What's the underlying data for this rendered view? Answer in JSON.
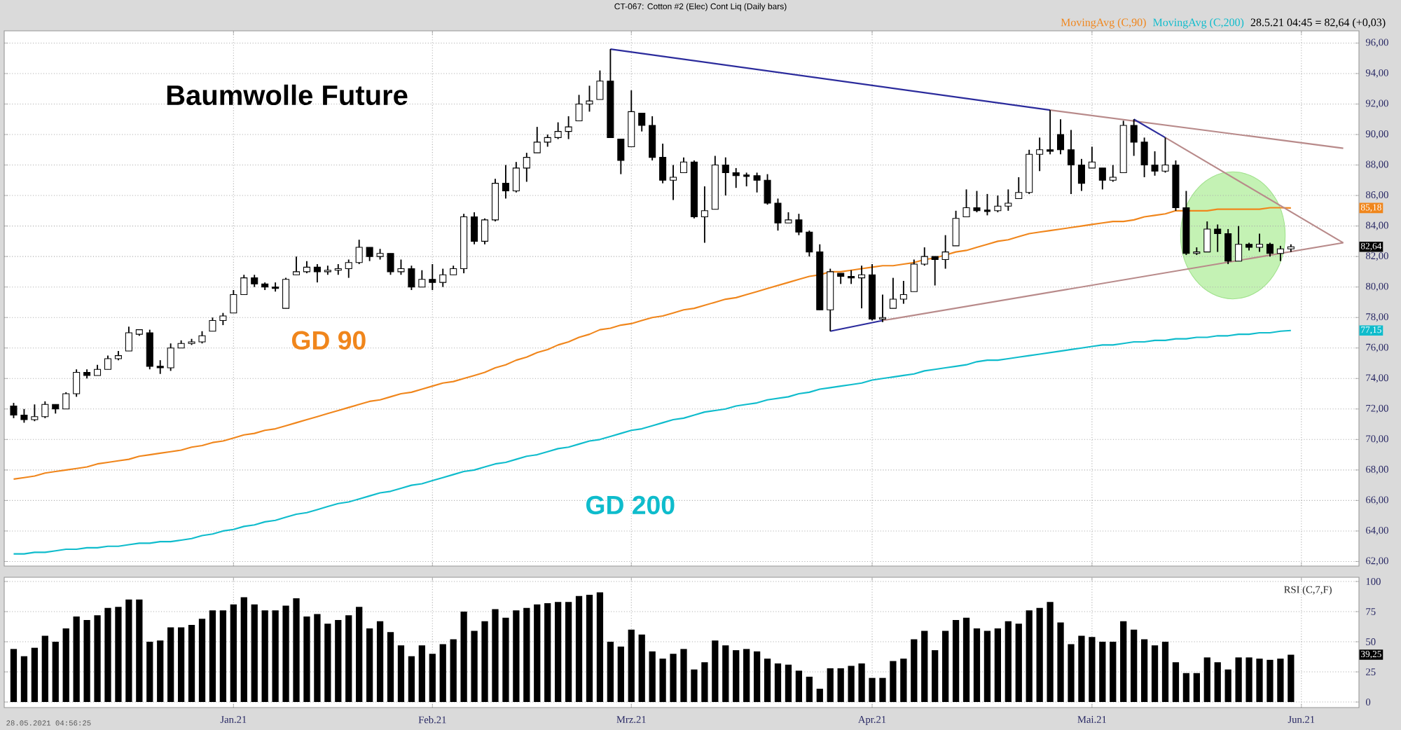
{
  "chart_data": [
    {
      "type": "candlestick",
      "title": "Baumwolle Future",
      "subtitle": "CT-067: Cotton #2 (Elec) Cont Liq (Daily bars)",
      "color": "#000000",
      "categories": [
        null,
        null,
        null,
        null,
        null,
        null,
        null,
        null,
        null,
        null,
        null,
        null,
        null,
        null,
        null,
        null,
        null,
        null,
        null,
        null,
        null,
        null,
        null,
        null,
        null,
        null,
        null,
        null,
        null,
        null,
        null,
        null,
        null,
        null,
        null,
        null,
        null,
        null,
        null,
        null,
        null,
        null,
        null,
        null,
        null,
        null,
        null,
        null,
        null,
        null,
        null,
        null,
        null,
        null,
        null,
        null,
        null,
        null,
        null,
        null,
        null,
        null,
        null,
        null,
        null,
        null,
        null,
        null,
        null,
        null,
        null,
        null,
        null,
        null,
        null,
        null,
        null,
        null,
        null,
        null,
        null,
        null,
        null,
        null,
        null,
        null,
        null,
        null,
        null,
        null,
        null,
        null,
        null,
        null,
        null,
        null,
        null,
        null,
        null,
        null,
        null,
        null,
        null,
        null,
        null,
        null,
        null,
        null,
        null,
        null,
        null,
        null,
        null,
        null,
        null,
        null,
        null,
        null,
        null,
        null,
        null,
        null,
        null,
        null,
        null,
        null,
        null,
        null
      ],
      "ohlc": [
        [
          72.2,
          72.4,
          71.4,
          71.6
        ],
        [
          71.6,
          72.0,
          71.1,
          71.3
        ],
        [
          71.3,
          72.3,
          71.2,
          71.5
        ],
        [
          71.5,
          72.5,
          71.4,
          72.3
        ],
        [
          72.3,
          72.3,
          71.7,
          72.0
        ],
        [
          72.0,
          73.1,
          72.0,
          73.0
        ],
        [
          73.0,
          74.6,
          72.8,
          74.4
        ],
        [
          74.4,
          74.6,
          74.0,
          74.2
        ],
        [
          74.2,
          74.9,
          74.2,
          74.6
        ],
        [
          74.6,
          75.5,
          74.6,
          75.3
        ],
        [
          75.3,
          75.8,
          75.2,
          75.5
        ],
        [
          75.8,
          77.4,
          75.8,
          77.0
        ],
        [
          76.9,
          77.2,
          76.8,
          77.2
        ],
        [
          77.0,
          77.2,
          74.6,
          74.8
        ],
        [
          74.8,
          75.2,
          74.3,
          74.7
        ],
        [
          74.7,
          76.3,
          74.5,
          76.0
        ],
        [
          76.0,
          76.5,
          76.0,
          76.3
        ],
        [
          76.3,
          76.6,
          76.2,
          76.4
        ],
        [
          76.4,
          77.1,
          76.3,
          76.8
        ],
        [
          77.1,
          78.0,
          77.1,
          77.8
        ],
        [
          77.8,
          78.3,
          77.5,
          78.1
        ],
        [
          78.3,
          79.8,
          78.3,
          79.5
        ],
        [
          79.5,
          80.8,
          79.5,
          80.6
        ],
        [
          80.6,
          80.8,
          80.0,
          80.2
        ],
        [
          80.2,
          80.3,
          79.8,
          80.0
        ],
        [
          80.0,
          80.3,
          79.7,
          79.9
        ],
        [
          78.6,
          80.6,
          78.6,
          80.5
        ],
        [
          80.8,
          82.0,
          80.8,
          81.0
        ],
        [
          81.0,
          81.7,
          80.9,
          81.3
        ],
        [
          81.3,
          81.5,
          80.3,
          81.0
        ],
        [
          81.0,
          81.4,
          80.8,
          81.1
        ],
        [
          81.1,
          81.5,
          80.8,
          81.2
        ],
        [
          81.2,
          81.8,
          80.6,
          81.6
        ],
        [
          81.6,
          83.1,
          81.5,
          82.6
        ],
        [
          82.6,
          82.6,
          81.7,
          82.0
        ],
        [
          82.0,
          82.5,
          81.8,
          82.2
        ],
        [
          82.2,
          82.2,
          80.8,
          81.0
        ],
        [
          81.0,
          81.8,
          80.8,
          81.2
        ],
        [
          81.2,
          81.4,
          79.8,
          80.0
        ],
        [
          80.0,
          81.1,
          80.0,
          80.5
        ],
        [
          80.5,
          81.5,
          79.8,
          80.3
        ],
        [
          80.3,
          81.2,
          80.0,
          80.8
        ],
        [
          80.8,
          81.4,
          80.8,
          81.2
        ],
        [
          81.2,
          84.8,
          80.9,
          84.6
        ],
        [
          84.6,
          84.9,
          82.8,
          83.0
        ],
        [
          83.0,
          84.5,
          82.8,
          84.4
        ],
        [
          84.4,
          87.1,
          84.3,
          86.8
        ],
        [
          86.8,
          88.0,
          85.8,
          86.3
        ],
        [
          86.3,
          88.2,
          86.2,
          87.8
        ],
        [
          87.8,
          88.8,
          86.9,
          88.5
        ],
        [
          88.8,
          90.5,
          88.8,
          89.5
        ],
        [
          89.5,
          90.0,
          89.2,
          89.8
        ],
        [
          89.8,
          90.8,
          89.7,
          90.2
        ],
        [
          90.2,
          91.2,
          89.7,
          90.5
        ],
        [
          90.9,
          92.6,
          90.9,
          92.0
        ],
        [
          92.0,
          93.2,
          91.5,
          92.2
        ],
        [
          92.3,
          94.2,
          92.3,
          93.5
        ],
        [
          93.5,
          95.6,
          89.8,
          89.8
        ],
        [
          89.7,
          89.7,
          87.4,
          88.3
        ],
        [
          89.2,
          92.9,
          89.2,
          91.5
        ],
        [
          91.4,
          91.4,
          90.2,
          90.6
        ],
        [
          90.6,
          91.2,
          88.3,
          88.5
        ],
        [
          88.5,
          89.4,
          86.8,
          87.0
        ],
        [
          87.0,
          88.0,
          85.7,
          87.2
        ],
        [
          87.5,
          88.5,
          87.5,
          88.2
        ],
        [
          88.2,
          88.3,
          84.5,
          84.6
        ],
        [
          84.6,
          86.6,
          82.9,
          85.0
        ],
        [
          85.1,
          88.6,
          85.1,
          88.0
        ],
        [
          88.0,
          88.5,
          86.0,
          87.5
        ],
        [
          87.5,
          87.8,
          86.5,
          87.3
        ],
        [
          87.3,
          87.5,
          86.6,
          87.3
        ],
        [
          87.3,
          87.5,
          86.2,
          87.0
        ],
        [
          87.0,
          87.4,
          85.4,
          85.5
        ],
        [
          85.5,
          85.8,
          83.7,
          84.2
        ],
        [
          84.2,
          84.9,
          84.2,
          84.4
        ],
        [
          84.4,
          84.8,
          83.4,
          83.6
        ],
        [
          83.6,
          83.7,
          82.0,
          82.3
        ],
        [
          82.3,
          82.8,
          78.5,
          78.5
        ],
        [
          78.5,
          81.2,
          77.1,
          81.0
        ],
        [
          80.9,
          80.9,
          80.2,
          80.7
        ],
        [
          80.7,
          81.1,
          80.2,
          80.6
        ],
        [
          80.6,
          81.4,
          78.6,
          80.8
        ],
        [
          80.8,
          81.5,
          77.8,
          77.9
        ],
        [
          77.9,
          79.5,
          77.7,
          78.0
        ],
        [
          78.6,
          80.6,
          78.6,
          79.2
        ],
        [
          79.2,
          80.4,
          78.9,
          79.5
        ],
        [
          79.7,
          81.8,
          79.7,
          81.5
        ],
        [
          81.5,
          82.6,
          81.4,
          82.0
        ],
        [
          82.0,
          82.0,
          80.1,
          81.8
        ],
        [
          81.8,
          83.4,
          81.2,
          82.3
        ],
        [
          82.7,
          85.0,
          82.7,
          84.5
        ],
        [
          84.6,
          86.4,
          84.6,
          85.2
        ],
        [
          85.2,
          86.3,
          84.9,
          85.0
        ],
        [
          85.0,
          86.1,
          84.7,
          85.0
        ],
        [
          85.0,
          86.0,
          84.9,
          85.3
        ],
        [
          85.3,
          86.4,
          85.0,
          85.5
        ],
        [
          85.8,
          87.2,
          85.8,
          86.2
        ],
        [
          86.2,
          89.0,
          86.1,
          88.7
        ],
        [
          88.7,
          89.8,
          87.6,
          89.0
        ],
        [
          89.0,
          91.6,
          88.7,
          88.9
        ],
        [
          90.0,
          91.0,
          88.7,
          89.0
        ],
        [
          89.0,
          90.3,
          86.1,
          88.0
        ],
        [
          88.0,
          88.4,
          86.3,
          86.8
        ],
        [
          87.8,
          89.2,
          87.8,
          88.2
        ],
        [
          87.8,
          87.8,
          86.4,
          87.0
        ],
        [
          87.0,
          88.0,
          86.9,
          87.2
        ],
        [
          87.5,
          90.9,
          87.5,
          90.6
        ],
        [
          90.6,
          91.0,
          88.6,
          89.5
        ],
        [
          89.5,
          89.8,
          87.2,
          88.0
        ],
        [
          88.0,
          88.9,
          87.3,
          87.6
        ],
        [
          87.6,
          89.8,
          87.5,
          88.0
        ],
        [
          88.0,
          88.3,
          85.0,
          85.2
        ],
        [
          85.2,
          86.3,
          82.1,
          82.2
        ],
        [
          82.2,
          82.6,
          82.1,
          82.3
        ],
        [
          82.3,
          84.3,
          82.3,
          83.8
        ],
        [
          83.8,
          84.1,
          82.3,
          83.5
        ],
        [
          83.5,
          83.8,
          81.5,
          81.7
        ],
        [
          81.7,
          84.0,
          81.7,
          82.8
        ],
        [
          82.8,
          82.9,
          82.4,
          82.6
        ],
        [
          82.6,
          83.5,
          82.3,
          82.8
        ],
        [
          82.8,
          82.9,
          82.0,
          82.2
        ],
        [
          82.2,
          82.7,
          81.7,
          82.5
        ],
        [
          82.5,
          82.8,
          82.3,
          82.64
        ],
        null,
        null,
        null,
        null,
        null
      ],
      "series": [
        {
          "name": "MovingAvg (C,90)",
          "type": "line",
          "color": "#f0861c",
          "values": [
            67.4,
            67.5,
            67.6,
            67.8,
            67.9,
            68.0,
            68.1,
            68.2,
            68.4,
            68.5,
            68.6,
            68.7,
            68.9,
            69.0,
            69.1,
            69.2,
            69.3,
            69.5,
            69.6,
            69.8,
            69.9,
            70.1,
            70.3,
            70.4,
            70.6,
            70.7,
            70.9,
            71.1,
            71.3,
            71.5,
            71.7,
            71.9,
            72.1,
            72.3,
            72.5,
            72.6,
            72.8,
            73.0,
            73.1,
            73.3,
            73.5,
            73.7,
            73.8,
            74.0,
            74.2,
            74.4,
            74.7,
            74.9,
            75.2,
            75.4,
            75.7,
            75.9,
            76.2,
            76.4,
            76.7,
            76.9,
            77.2,
            77.3,
            77.5,
            77.6,
            77.8,
            78.0,
            78.1,
            78.3,
            78.5,
            78.6,
            78.8,
            79.0,
            79.2,
            79.3,
            79.5,
            79.7,
            79.9,
            80.1,
            80.3,
            80.5,
            80.7,
            80.8,
            81.0,
            81.0,
            81.1,
            81.2,
            81.3,
            81.4,
            81.4,
            81.5,
            81.6,
            81.8,
            81.9,
            82.1,
            82.3,
            82.4,
            82.6,
            82.8,
            83.0,
            83.1,
            83.3,
            83.5,
            83.6,
            83.7,
            83.8,
            83.9,
            84.0,
            84.1,
            84.2,
            84.3,
            84.3,
            84.4,
            84.6,
            84.7,
            84.8,
            85.0,
            85.0,
            85.0,
            85.0,
            85.1,
            85.1,
            85.1,
            85.1,
            85.1,
            85.2,
            85.2,
            85.18,
            null,
            null,
            null,
            null,
            null
          ]
        },
        {
          "name": "MovingAvg (C,200)",
          "type": "line",
          "color": "#0fbccc",
          "values": [
            62.5,
            62.5,
            62.6,
            62.6,
            62.7,
            62.8,
            62.8,
            62.9,
            62.9,
            63.0,
            63.0,
            63.1,
            63.2,
            63.2,
            63.3,
            63.3,
            63.4,
            63.5,
            63.7,
            63.8,
            64.0,
            64.1,
            64.3,
            64.4,
            64.6,
            64.7,
            64.9,
            65.1,
            65.2,
            65.4,
            65.6,
            65.8,
            65.9,
            66.1,
            66.3,
            66.5,
            66.6,
            66.8,
            67.0,
            67.1,
            67.3,
            67.5,
            67.7,
            67.9,
            68.0,
            68.2,
            68.4,
            68.5,
            68.7,
            68.9,
            69.0,
            69.2,
            69.4,
            69.5,
            69.7,
            69.9,
            70.0,
            70.2,
            70.4,
            70.6,
            70.7,
            70.9,
            71.1,
            71.3,
            71.4,
            71.6,
            71.8,
            71.9,
            72.0,
            72.2,
            72.3,
            72.4,
            72.6,
            72.7,
            72.8,
            73.0,
            73.1,
            73.3,
            73.4,
            73.5,
            73.6,
            73.7,
            73.9,
            74.0,
            74.1,
            74.2,
            74.3,
            74.5,
            74.6,
            74.7,
            74.8,
            74.9,
            75.1,
            75.2,
            75.2,
            75.3,
            75.4,
            75.5,
            75.6,
            75.7,
            75.8,
            75.9,
            76.0,
            76.1,
            76.2,
            76.2,
            76.3,
            76.4,
            76.4,
            76.5,
            76.5,
            76.6,
            76.6,
            76.7,
            76.7,
            76.8,
            76.8,
            76.9,
            76.9,
            77.0,
            77.0,
            77.1,
            77.15,
            null,
            null,
            null,
            null,
            null
          ]
        },
        {
          "type": "line",
          "color": "#2b2b9c",
          "values": [
            null,
            null,
            null,
            null,
            null,
            null,
            null,
            null,
            null,
            null,
            null,
            null,
            null,
            null,
            null,
            null,
            null,
            null,
            null,
            null,
            null,
            null,
            null,
            null,
            null,
            null,
            null,
            null,
            null,
            null,
            null,
            null,
            null,
            null,
            null,
            null,
            null,
            null,
            null,
            null,
            null,
            null,
            null,
            null,
            null,
            null,
            null,
            null,
            null,
            null,
            null,
            null,
            null,
            null,
            null,
            null,
            null,
            95.6,
            null,
            null,
            null,
            null,
            null,
            null,
            null,
            null,
            null,
            null,
            null,
            null,
            null,
            null,
            null,
            null,
            null,
            null,
            null,
            null,
            null,
            null,
            null,
            null,
            null,
            null,
            null,
            null,
            null,
            null,
            null,
            null,
            null,
            null,
            null,
            null,
            null,
            null,
            null,
            null,
            null,
            91.6,
            null,
            null,
            null,
            null,
            null,
            null,
            null,
            null,
            null,
            null,
            null,
            null,
            null,
            null,
            null,
            null,
            null,
            null,
            null,
            null,
            null,
            null,
            null,
            null,
            null,
            null,
            null,
            null
          ]
        },
        {
          "type": "line",
          "color": "#b88a8a",
          "values": [
            null,
            null,
            null,
            null,
            null,
            null,
            null,
            null,
            null,
            null,
            null,
            null,
            null,
            null,
            null,
            null,
            null,
            null,
            null,
            null,
            null,
            null,
            null,
            null,
            null,
            null,
            null,
            null,
            null,
            null,
            null,
            null,
            null,
            null,
            null,
            null,
            null,
            null,
            null,
            null,
            null,
            null,
            null,
            null,
            null,
            null,
            null,
            null,
            null,
            null,
            null,
            null,
            null,
            null,
            null,
            null,
            null,
            null,
            null,
            null,
            null,
            null,
            null,
            null,
            null,
            null,
            null,
            null,
            null,
            null,
            null,
            null,
            null,
            null,
            null,
            null,
            null,
            null,
            null,
            null,
            null,
            null,
            null,
            null,
            null,
            null,
            null,
            null,
            null,
            null,
            null,
            null,
            null,
            null,
            null,
            null,
            null,
            null,
            null,
            91.6,
            null,
            null,
            null,
            null,
            null,
            null,
            null,
            null,
            null,
            null,
            null,
            null,
            null,
            null,
            null,
            null,
            null,
            null,
            null,
            null,
            null,
            null,
            null,
            null,
            null,
            null,
            null,
            89.1
          ]
        },
        {
          "type": "line",
          "color": "#2b2b9c",
          "values": [
            null,
            null,
            null,
            null,
            null,
            null,
            null,
            null,
            null,
            null,
            null,
            null,
            null,
            null,
            null,
            null,
            null,
            null,
            null,
            null,
            null,
            null,
            null,
            null,
            null,
            null,
            null,
            null,
            null,
            null,
            null,
            null,
            null,
            null,
            null,
            null,
            null,
            null,
            null,
            null,
            null,
            null,
            null,
            null,
            null,
            null,
            null,
            null,
            null,
            null,
            null,
            null,
            null,
            null,
            null,
            null,
            null,
            null,
            null,
            null,
            null,
            null,
            null,
            null,
            null,
            null,
            null,
            null,
            null,
            null,
            null,
            null,
            null,
            null,
            null,
            null,
            null,
            null,
            null,
            null,
            null,
            null,
            null,
            null,
            null,
            null,
            null,
            null,
            null,
            null,
            null,
            null,
            null,
            null,
            null,
            null,
            null,
            null,
            null,
            null,
            null,
            null,
            null,
            null,
            null,
            null,
            null,
            91.0,
            null,
            null,
            89.8,
            null,
            null,
            null,
            null,
            null,
            null,
            null,
            null,
            null,
            null,
            null,
            null,
            null,
            null,
            null,
            null,
            null
          ]
        },
        {
          "type": "line",
          "color": "#b88a8a",
          "values": [
            null,
            null,
            null,
            null,
            null,
            null,
            null,
            null,
            null,
            null,
            null,
            null,
            null,
            null,
            null,
            null,
            null,
            null,
            null,
            null,
            null,
            null,
            null,
            null,
            null,
            null,
            null,
            null,
            null,
            null,
            null,
            null,
            null,
            null,
            null,
            null,
            null,
            null,
            null,
            null,
            null,
            null,
            null,
            null,
            null,
            null,
            null,
            null,
            null,
            null,
            null,
            null,
            null,
            null,
            null,
            null,
            null,
            null,
            null,
            null,
            null,
            null,
            null,
            null,
            null,
            null,
            null,
            null,
            null,
            null,
            null,
            null,
            null,
            null,
            null,
            null,
            null,
            null,
            null,
            null,
            null,
            null,
            null,
            null,
            null,
            null,
            null,
            null,
            null,
            null,
            null,
            null,
            null,
            null,
            null,
            null,
            null,
            null,
            null,
            null,
            null,
            null,
            null,
            null,
            null,
            null,
            null,
            null,
            null,
            null,
            89.8,
            null,
            null,
            null,
            null,
            null,
            null,
            null,
            null,
            null,
            null,
            null,
            null,
            null,
            null,
            null,
            null,
            82.9
          ]
        },
        {
          "type": "line",
          "color": "#2b2b9c",
          "values": [
            null,
            null,
            null,
            null,
            null,
            null,
            null,
            null,
            null,
            null,
            null,
            null,
            null,
            null,
            null,
            null,
            null,
            null,
            null,
            null,
            null,
            null,
            null,
            null,
            null,
            null,
            null,
            null,
            null,
            null,
            null,
            null,
            null,
            null,
            null,
            null,
            null,
            null,
            null,
            null,
            null,
            null,
            null,
            null,
            null,
            null,
            null,
            null,
            null,
            null,
            null,
            null,
            null,
            null,
            null,
            null,
            null,
            null,
            null,
            null,
            null,
            null,
            null,
            null,
            null,
            null,
            null,
            null,
            null,
            null,
            null,
            null,
            null,
            null,
            null,
            null,
            null,
            null,
            77.1,
            null,
            null,
            null,
            null,
            77.8,
            null,
            null,
            null,
            null,
            null,
            null,
            null,
            null,
            null,
            null,
            null,
            null,
            null,
            null,
            null,
            null,
            null,
            null,
            null,
            null,
            null,
            null,
            null,
            null,
            null,
            null,
            null,
            null,
            null,
            null,
            null,
            null,
            null,
            null,
            null,
            null,
            null,
            null,
            null,
            null,
            null,
            null,
            null,
            null
          ]
        },
        {
          "type": "line",
          "color": "#b88a8a",
          "values": [
            null,
            null,
            null,
            null,
            null,
            null,
            null,
            null,
            null,
            null,
            null,
            null,
            null,
            null,
            null,
            null,
            null,
            null,
            null,
            null,
            null,
            null,
            null,
            null,
            null,
            null,
            null,
            null,
            null,
            null,
            null,
            null,
            null,
            null,
            null,
            null,
            null,
            null,
            null,
            null,
            null,
            null,
            null,
            null,
            null,
            null,
            null,
            null,
            null,
            null,
            null,
            null,
            null,
            null,
            null,
            null,
            null,
            null,
            null,
            null,
            null,
            null,
            null,
            null,
            null,
            null,
            null,
            null,
            null,
            null,
            null,
            null,
            null,
            null,
            null,
            null,
            null,
            null,
            null,
            null,
            null,
            null,
            null,
            77.8,
            null,
            null,
            null,
            null,
            null,
            null,
            null,
            null,
            null,
            null,
            null,
            null,
            null,
            null,
            null,
            null,
            null,
            null,
            null,
            null,
            null,
            null,
            null,
            null,
            null,
            null,
            null,
            null,
            null,
            null,
            null,
            null,
            null,
            null,
            null,
            null,
            null,
            null,
            null,
            null,
            null,
            null,
            null,
            82.9
          ]
        }
      ],
      "annotations": [
        "GD 90",
        "GD 200",
        "28.5.21 04:45 = 82,64 (+0,03)",
        {
          "text": "85,18",
          "y": 85.18
        },
        {
          "text": "82,64",
          "y": 82.64
        },
        {
          "text": "77,15",
          "y": 77.15
        }
      ],
      "ylim": [
        61.7,
        96.8
      ],
      "yticks": [
        {
          "value": 62,
          "label": "62,00"
        },
        {
          "value": 64,
          "label": "64,00"
        },
        {
          "value": 66,
          "label": "66,00"
        },
        {
          "value": 68,
          "label": "68,00"
        },
        {
          "value": 70,
          "label": "70,00"
        },
        {
          "value": 72,
          "label": "72,00"
        },
        {
          "value": 74,
          "label": "74,00"
        },
        {
          "value": 76,
          "label": "76,00"
        },
        {
          "value": 78,
          "label": "78,00"
        },
        {
          "value": 80,
          "label": "80,00"
        },
        {
          "value": 82,
          "label": "82,00"
        },
        {
          "value": 84,
          "label": "84,00"
        },
        {
          "value": 86,
          "label": "86,00"
        },
        {
          "value": 88,
          "label": "88,00"
        },
        {
          "value": 90,
          "label": "90,00"
        },
        {
          "value": 92,
          "label": "92,00"
        },
        {
          "value": 94,
          "label": "94,00"
        },
        {
          "value": 96,
          "label": "96,00"
        }
      ],
      "grid": true,
      "legend": "top right",
      "tick_labels": "y"
    },
    {
      "type": "bar",
      "title": "RSI (C,7,F)",
      "color": "#000000",
      "categories": [
        null,
        null,
        null,
        null,
        null,
        null,
        null,
        null,
        null,
        null,
        null,
        null,
        null,
        null,
        null,
        null,
        null,
        null,
        null,
        null,
        null,
        "Jan.21",
        null,
        null,
        null,
        null,
        null,
        null,
        null,
        null,
        null,
        null,
        null,
        null,
        null,
        null,
        null,
        null,
        null,
        null,
        "Feb.21",
        null,
        null,
        null,
        null,
        null,
        null,
        null,
        null,
        null,
        null,
        null,
        null,
        null,
        null,
        null,
        null,
        null,
        null,
        "Mrz.21",
        null,
        null,
        null,
        null,
        null,
        null,
        null,
        null,
        null,
        null,
        null,
        null,
        null,
        null,
        null,
        null,
        null,
        null,
        null,
        null,
        null,
        null,
        "Apr.21",
        null,
        null,
        null,
        null,
        null,
        null,
        null,
        null,
        null,
        null,
        null,
        null,
        null,
        null,
        null,
        null,
        null,
        null,
        null,
        null,
        "Mai.21",
        null,
        null,
        null,
        null,
        null,
        null,
        null,
        null,
        null,
        null,
        null,
        null,
        null,
        null,
        null,
        null,
        null,
        null,
        null,
        "Jun.21",
        null,
        null,
        null,
        null
      ],
      "values": [
        44,
        38,
        45,
        55,
        50,
        61,
        71,
        68,
        72,
        78,
        79,
        85,
        85,
        50,
        51,
        62,
        62,
        64,
        69,
        76,
        76,
        81,
        87,
        81,
        76,
        76,
        80,
        86,
        71,
        73,
        65,
        68,
        72,
        79,
        61,
        67,
        58,
        47,
        38,
        47,
        40,
        48,
        52,
        75,
        59,
        67,
        77,
        70,
        76,
        78,
        81,
        82,
        83,
        83,
        88,
        89,
        91,
        50,
        46,
        60,
        56,
        42,
        36,
        40,
        44,
        27,
        33,
        51,
        47,
        43,
        44,
        42,
        36,
        32,
        31,
        26,
        21,
        11,
        28,
        28,
        30,
        32,
        20,
        20,
        34,
        36,
        52,
        59,
        43,
        59,
        68,
        70,
        61,
        59,
        61,
        67,
        65,
        76,
        78,
        83,
        66,
        48,
        55,
        54,
        50,
        50,
        67,
        60,
        52,
        47,
        50,
        33,
        24,
        24,
        37,
        33,
        27,
        37,
        37,
        36,
        35,
        36,
        39.25,
        null,
        null,
        null,
        null,
        null
      ],
      "annotations": [
        "39,25",
        "28.05.2021 04:56:25"
      ],
      "ylim": [
        -4.6,
        103.5
      ],
      "yticks": [
        {
          "value": 0,
          "label": "0"
        },
        {
          "value": 25,
          "label": "25"
        },
        {
          "value": 50,
          "label": "50"
        },
        {
          "value": 75,
          "label": "75"
        },
        {
          "value": 100,
          "label": "100"
        }
      ],
      "grid": true
    }
  ]
}
